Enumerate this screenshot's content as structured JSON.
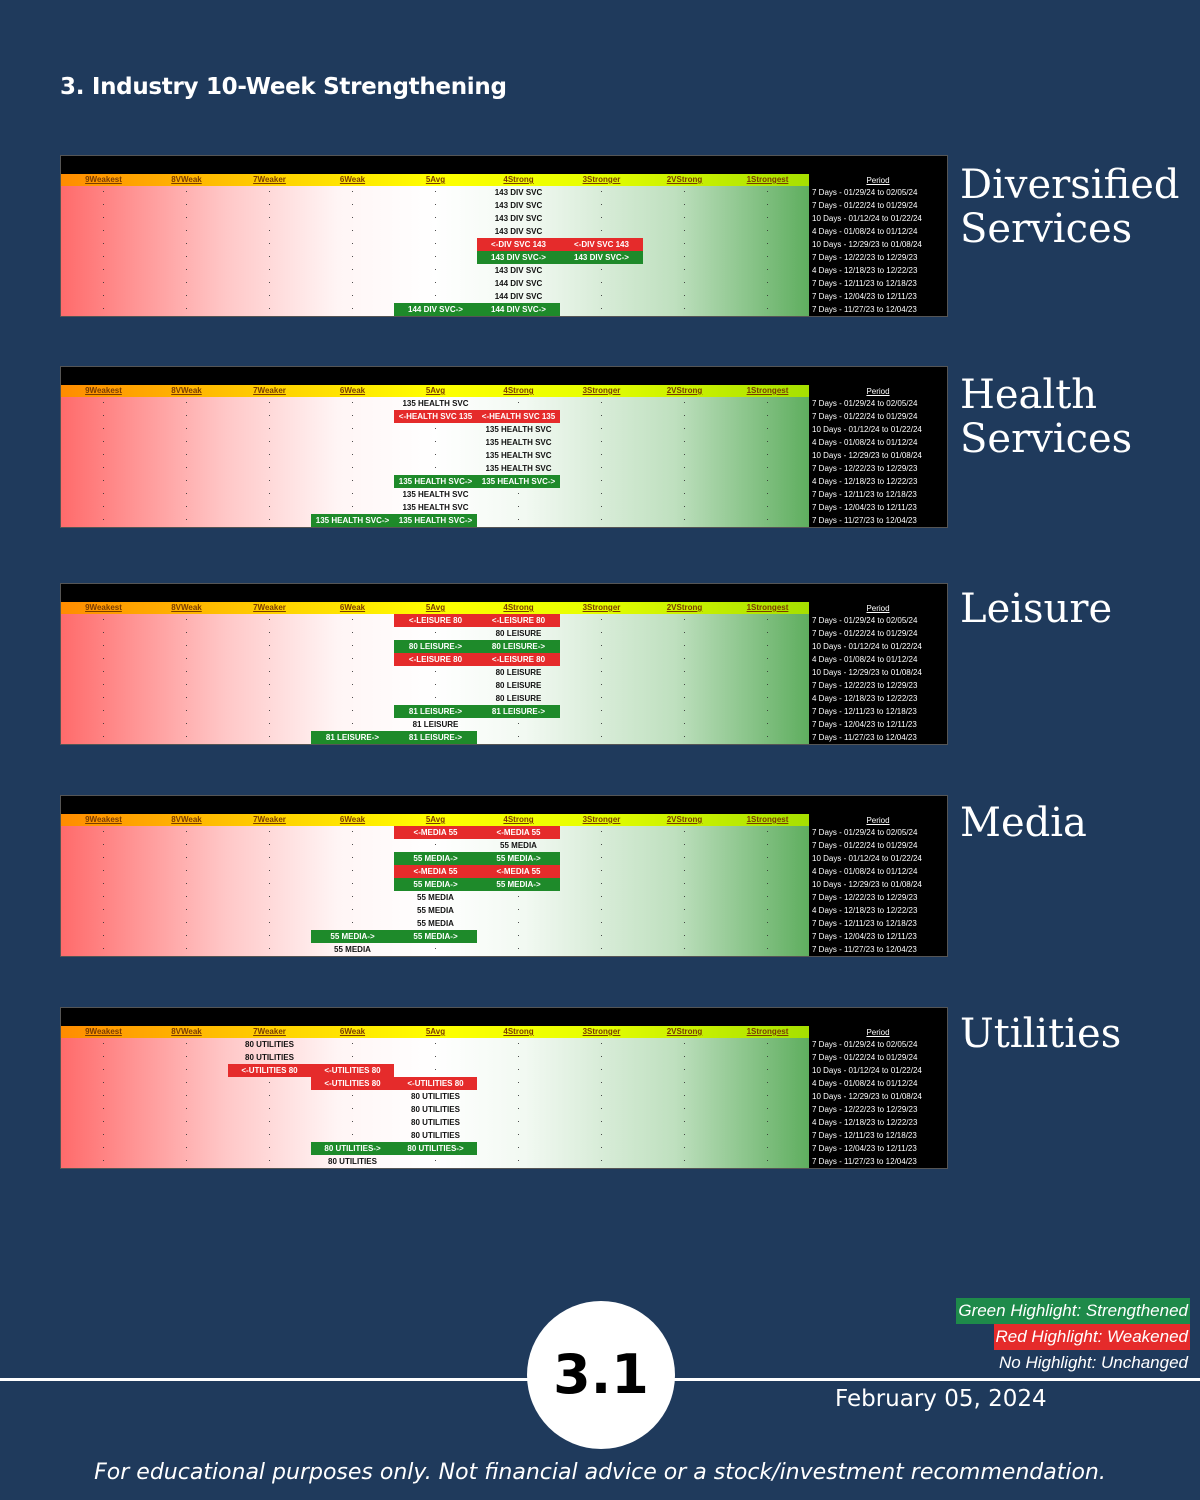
{
  "page_title": "3. Industry 10-Week Strengthening",
  "columns": [
    "9Weakest",
    "8VWeak",
    "7Weaker",
    "6Weak",
    "5Avg",
    "4Strong",
    "3Stronger",
    "2VStrong",
    "1Strongest"
  ],
  "period_header": "Period",
  "panels": [
    {
      "label_line1": "Diversified",
      "label_line2": "Services",
      "periods": [
        "7 Days - 01/29/24 to 02/05/24",
        "7 Days - 01/22/24 to 01/29/24",
        "10 Days - 01/12/24 to 01/22/24",
        "4 Days - 01/08/24 to 01/12/24",
        "10 Days - 12/29/23 to 01/08/24",
        "7 Days - 12/22/23 to 12/29/23",
        "4 Days - 12/18/23 to 12/22/23",
        "7 Days - 12/11/23 to 12/18/23",
        "7 Days - 12/04/23 to 12/11/23",
        "7 Days - 11/27/23 to 12/04/23"
      ],
      "cells": [
        {
          "row": 0,
          "col": 5,
          "text": "143 DIV SVC",
          "style": "plain"
        },
        {
          "row": 1,
          "col": 5,
          "text": "143 DIV SVC",
          "style": "plain"
        },
        {
          "row": 2,
          "col": 5,
          "text": "143 DIV SVC",
          "style": "plain"
        },
        {
          "row": 3,
          "col": 5,
          "text": "143 DIV SVC",
          "style": "plain"
        },
        {
          "row": 4,
          "col": 5,
          "text": "<-DIV SVC 143",
          "style": "red"
        },
        {
          "row": 4,
          "col": 6,
          "text": "<-DIV SVC 143",
          "style": "red"
        },
        {
          "row": 5,
          "col": 5,
          "text": "143 DIV SVC->",
          "style": "green"
        },
        {
          "row": 5,
          "col": 6,
          "text": "143 DIV SVC->",
          "style": "green"
        },
        {
          "row": 6,
          "col": 5,
          "text": "143 DIV SVC",
          "style": "plain"
        },
        {
          "row": 7,
          "col": 5,
          "text": "144 DIV SVC",
          "style": "plain"
        },
        {
          "row": 8,
          "col": 5,
          "text": "144 DIV SVC",
          "style": "plain"
        },
        {
          "row": 9,
          "col": 4,
          "text": "144 DIV SVC->",
          "style": "green"
        },
        {
          "row": 9,
          "col": 5,
          "text": "144 DIV SVC->",
          "style": "green"
        }
      ]
    },
    {
      "label_line1": "Health",
      "label_line2": "Services",
      "periods": [
        "7 Days - 01/29/24 to 02/05/24",
        "7 Days - 01/22/24 to 01/29/24",
        "10 Days - 01/12/24 to 01/22/24",
        "4 Days - 01/08/24 to 01/12/24",
        "10 Days - 12/29/23 to 01/08/24",
        "7 Days - 12/22/23 to 12/29/23",
        "4 Days - 12/18/23 to 12/22/23",
        "7 Days - 12/11/23 to 12/18/23",
        "7 Days - 12/04/23 to 12/11/23",
        "7 Days - 11/27/23 to 12/04/23"
      ],
      "cells": [
        {
          "row": 0,
          "col": 4,
          "text": "135 HEALTH SVC",
          "style": "plain"
        },
        {
          "row": 1,
          "col": 4,
          "text": "<-HEALTH SVC 135",
          "style": "red"
        },
        {
          "row": 1,
          "col": 5,
          "text": "<-HEALTH SVC 135",
          "style": "red"
        },
        {
          "row": 2,
          "col": 5,
          "text": "135 HEALTH SVC",
          "style": "plain"
        },
        {
          "row": 3,
          "col": 5,
          "text": "135 HEALTH SVC",
          "style": "plain"
        },
        {
          "row": 4,
          "col": 5,
          "text": "135 HEALTH SVC",
          "style": "plain"
        },
        {
          "row": 5,
          "col": 5,
          "text": "135 HEALTH SVC",
          "style": "plain"
        },
        {
          "row": 6,
          "col": 4,
          "text": "135 HEALTH SVC->",
          "style": "green"
        },
        {
          "row": 6,
          "col": 5,
          "text": "135 HEALTH SVC->",
          "style": "green"
        },
        {
          "row": 7,
          "col": 4,
          "text": "135 HEALTH SVC",
          "style": "plain"
        },
        {
          "row": 8,
          "col": 4,
          "text": "135 HEALTH SVC",
          "style": "plain"
        },
        {
          "row": 9,
          "col": 3,
          "text": "135 HEALTH SVC->",
          "style": "green"
        },
        {
          "row": 9,
          "col": 4,
          "text": "135 HEALTH SVC->",
          "style": "green"
        }
      ]
    },
    {
      "label_line1": "Leisure",
      "label_line2": "",
      "periods": [
        "7 Days - 01/29/24 to 02/05/24",
        "7 Days - 01/22/24 to 01/29/24",
        "10 Days - 01/12/24 to 01/22/24",
        "4 Days - 01/08/24 to 01/12/24",
        "10 Days - 12/29/23 to 01/08/24",
        "7 Days - 12/22/23 to 12/29/23",
        "4 Days - 12/18/23 to 12/22/23",
        "7 Days - 12/11/23 to 12/18/23",
        "7 Days - 12/04/23 to 12/11/23",
        "7 Days - 11/27/23 to 12/04/23"
      ],
      "cells": [
        {
          "row": 0,
          "col": 4,
          "text": "<-LEISURE 80",
          "style": "red"
        },
        {
          "row": 0,
          "col": 5,
          "text": "<-LEISURE 80",
          "style": "red"
        },
        {
          "row": 1,
          "col": 5,
          "text": "80 LEISURE",
          "style": "plain"
        },
        {
          "row": 2,
          "col": 4,
          "text": "80 LEISURE->",
          "style": "green"
        },
        {
          "row": 2,
          "col": 5,
          "text": "80 LEISURE->",
          "style": "green"
        },
        {
          "row": 3,
          "col": 4,
          "text": "<-LEISURE 80",
          "style": "red"
        },
        {
          "row": 3,
          "col": 5,
          "text": "<-LEISURE 80",
          "style": "red"
        },
        {
          "row": 4,
          "col": 5,
          "text": "80 LEISURE",
          "style": "plain"
        },
        {
          "row": 5,
          "col": 5,
          "text": "80 LEISURE",
          "style": "plain"
        },
        {
          "row": 6,
          "col": 5,
          "text": "80 LEISURE",
          "style": "plain"
        },
        {
          "row": 7,
          "col": 4,
          "text": "81 LEISURE->",
          "style": "green"
        },
        {
          "row": 7,
          "col": 5,
          "text": "81 LEISURE->",
          "style": "green"
        },
        {
          "row": 8,
          "col": 4,
          "text": "81 LEISURE",
          "style": "plain"
        },
        {
          "row": 9,
          "col": 3,
          "text": "81 LEISURE->",
          "style": "green"
        },
        {
          "row": 9,
          "col": 4,
          "text": "81 LEISURE->",
          "style": "green"
        }
      ]
    },
    {
      "label_line1": "Media",
      "label_line2": "",
      "periods": [
        "7 Days - 01/29/24 to 02/05/24",
        "7 Days - 01/22/24 to 01/29/24",
        "10 Days - 01/12/24 to 01/22/24",
        "4 Days - 01/08/24 to 01/12/24",
        "10 Days - 12/29/23 to 01/08/24",
        "7 Days - 12/22/23 to 12/29/23",
        "4 Days - 12/18/23 to 12/22/23",
        "7 Days - 12/11/23 to 12/18/23",
        "7 Days - 12/04/23 to 12/11/23",
        "7 Days - 11/27/23 to 12/04/23"
      ],
      "cells": [
        {
          "row": 0,
          "col": 4,
          "text": "<-MEDIA 55",
          "style": "red"
        },
        {
          "row": 0,
          "col": 5,
          "text": "<-MEDIA 55",
          "style": "red"
        },
        {
          "row": 1,
          "col": 5,
          "text": "55 MEDIA",
          "style": "plain"
        },
        {
          "row": 2,
          "col": 4,
          "text": "55 MEDIA->",
          "style": "green"
        },
        {
          "row": 2,
          "col": 5,
          "text": "55 MEDIA->",
          "style": "green"
        },
        {
          "row": 3,
          "col": 4,
          "text": "<-MEDIA 55",
          "style": "red"
        },
        {
          "row": 3,
          "col": 5,
          "text": "<-MEDIA 55",
          "style": "red"
        },
        {
          "row": 4,
          "col": 4,
          "text": "55 MEDIA->",
          "style": "green"
        },
        {
          "row": 4,
          "col": 5,
          "text": "55 MEDIA->",
          "style": "green"
        },
        {
          "row": 5,
          "col": 4,
          "text": "55 MEDIA",
          "style": "plain"
        },
        {
          "row": 6,
          "col": 4,
          "text": "55 MEDIA",
          "style": "plain"
        },
        {
          "row": 7,
          "col": 4,
          "text": "55 MEDIA",
          "style": "plain"
        },
        {
          "row": 8,
          "col": 3,
          "text": "55 MEDIA->",
          "style": "green"
        },
        {
          "row": 8,
          "col": 4,
          "text": "55 MEDIA->",
          "style": "green"
        },
        {
          "row": 9,
          "col": 3,
          "text": "55 MEDIA",
          "style": "plain"
        }
      ]
    },
    {
      "label_line1": "Utilities",
      "label_line2": "",
      "periods": [
        "7 Days - 01/29/24 to 02/05/24",
        "7 Days - 01/22/24 to 01/29/24",
        "10 Days - 01/12/24 to 01/22/24",
        "4 Days - 01/08/24 to 01/12/24",
        "10 Days - 12/29/23 to 01/08/24",
        "7 Days - 12/22/23 to 12/29/23",
        "4 Days - 12/18/23 to 12/22/23",
        "7 Days - 12/11/23 to 12/18/23",
        "7 Days - 12/04/23 to 12/11/23",
        "7 Days - 11/27/23 to 12/04/23"
      ],
      "cells": [
        {
          "row": 0,
          "col": 2,
          "text": "80 UTILITIES",
          "style": "plain"
        },
        {
          "row": 1,
          "col": 2,
          "text": "80 UTILITIES",
          "style": "plain"
        },
        {
          "row": 2,
          "col": 2,
          "text": "<-UTILITIES 80",
          "style": "red"
        },
        {
          "row": 2,
          "col": 3,
          "text": "<-UTILITIES 80",
          "style": "red"
        },
        {
          "row": 3,
          "col": 3,
          "text": "<-UTILITIES 80",
          "style": "red"
        },
        {
          "row": 3,
          "col": 4,
          "text": "<-UTILITIES 80",
          "style": "red"
        },
        {
          "row": 4,
          "col": 4,
          "text": "80 UTILITIES",
          "style": "plain"
        },
        {
          "row": 5,
          "col": 4,
          "text": "80 UTILITIES",
          "style": "plain"
        },
        {
          "row": 6,
          "col": 4,
          "text": "80 UTILITIES",
          "style": "plain"
        },
        {
          "row": 7,
          "col": 4,
          "text": "80 UTILITIES",
          "style": "plain"
        },
        {
          "row": 8,
          "col": 3,
          "text": "80 UTILITIES->",
          "style": "green"
        },
        {
          "row": 8,
          "col": 4,
          "text": "80 UTILITIES->",
          "style": "green"
        },
        {
          "row": 9,
          "col": 3,
          "text": "80 UTILITIES",
          "style": "plain"
        }
      ]
    }
  ],
  "legend": {
    "green": "Green Highlight: Strengthened",
    "red": "Red Highlight: Weakened",
    "none": "No Highlight: Unchanged"
  },
  "page_number": "3.1",
  "date": "February 05, 2024",
  "disclaimer": "For educational purposes only. Not financial advice or a stock/investment recommendation."
}
